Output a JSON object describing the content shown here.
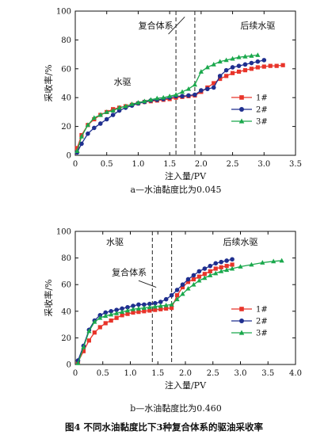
{
  "figure_caption": "图4   不同水油黏度比下3种复合体系的驱油采收率",
  "chart_data": [
    {
      "type": "line",
      "subcaption": "a—水油黏度比为0.045",
      "xlabel": "注入量/PV",
      "ylabel": "采收率/%",
      "xlim": [
        0,
        3.5
      ],
      "ylim": [
        0,
        100
      ],
      "xticks": [
        "0",
        "0.5",
        "1.0",
        "1.5",
        "2.0",
        "2.5",
        "3.0",
        "3.5"
      ],
      "yticks": [
        "0",
        "20",
        "40",
        "60",
        "80",
        "100"
      ],
      "grid": false,
      "legend_position": "right-middle",
      "annotations": [
        "复合体系",
        "水驱",
        "后续水驱"
      ],
      "phase_boundaries_pv": [
        1.6,
        1.9
      ],
      "series": [
        {
          "name": "1#",
          "color": "#e8342a",
          "marker": "square",
          "x": [
            0.03,
            0.1,
            0.2,
            0.3,
            0.4,
            0.5,
            0.6,
            0.7,
            0.8,
            0.9,
            1.0,
            1.1,
            1.2,
            1.3,
            1.4,
            1.5,
            1.6,
            1.7,
            1.8,
            1.9,
            2.0,
            2.1,
            2.2,
            2.3,
            2.4,
            2.5,
            2.6,
            2.7,
            2.8,
            2.9,
            3.0,
            3.1,
            3.2,
            3.3
          ],
          "y": [
            5,
            14,
            21,
            25,
            28,
            30,
            32,
            33,
            34,
            35,
            36,
            37,
            37.5,
            38,
            38.5,
            39,
            40,
            40.5,
            41,
            41.5,
            44,
            47,
            50,
            53,
            55,
            57,
            58,
            59,
            60,
            61,
            61.5,
            62,
            62,
            62.5
          ]
        },
        {
          "name": "2#",
          "color": "#1f2f8f",
          "marker": "circle",
          "x": [
            0.03,
            0.1,
            0.2,
            0.3,
            0.4,
            0.5,
            0.6,
            0.7,
            0.8,
            0.9,
            1.0,
            1.1,
            1.2,
            1.3,
            1.4,
            1.5,
            1.6,
            1.7,
            1.8,
            1.9,
            2.0,
            2.1,
            2.2,
            2.3,
            2.4,
            2.5,
            2.6,
            2.7,
            2.8,
            2.9,
            3.0
          ],
          "y": [
            2,
            8,
            15,
            19,
            22,
            25,
            28,
            31,
            33,
            34.5,
            36,
            37,
            38,
            38.5,
            39,
            40,
            41,
            41,
            41.5,
            42,
            45,
            46,
            47,
            55,
            59,
            61,
            62,
            63,
            64,
            65,
            66
          ]
        },
        {
          "name": "3#",
          "color": "#1aa84c",
          "marker": "triangle",
          "x": [
            0.03,
            0.1,
            0.2,
            0.3,
            0.4,
            0.5,
            0.6,
            0.7,
            0.8,
            0.9,
            1.0,
            1.1,
            1.2,
            1.3,
            1.4,
            1.5,
            1.6,
            1.7,
            1.8,
            1.9,
            2.0,
            2.1,
            2.2,
            2.3,
            2.4,
            2.5,
            2.6,
            2.7,
            2.8,
            2.9
          ],
          "y": [
            3,
            13,
            21,
            26,
            28,
            30,
            31,
            33,
            34,
            35.5,
            36.5,
            37.5,
            38.5,
            39.5,
            40,
            41,
            42,
            44,
            46,
            49,
            58,
            61,
            63,
            65,
            66,
            67,
            68,
            68.5,
            69,
            69.5
          ]
        }
      ]
    },
    {
      "type": "line",
      "subcaption": "b—水油黏度比为0.460",
      "xlabel": "注入量/PV",
      "ylabel": "采收率/%",
      "xlim": [
        0,
        4.0
      ],
      "ylim": [
        0,
        100
      ],
      "xticks": [
        "0",
        "0.5",
        "1.0",
        "1.5",
        "2.0",
        "2.5",
        "3.0",
        "3.5",
        "4.0"
      ],
      "yticks": [
        "0",
        "20",
        "40",
        "60",
        "80",
        "100"
      ],
      "grid": false,
      "legend_position": "right-middle",
      "annotations": [
        "水驱",
        "复合体系",
        "后续水驱"
      ],
      "phase_boundaries_pv": [
        1.4,
        1.75
      ],
      "series": [
        {
          "name": "1#",
          "color": "#e8342a",
          "marker": "square",
          "x": [
            0.05,
            0.15,
            0.25,
            0.35,
            0.45,
            0.55,
            0.65,
            0.75,
            0.85,
            0.95,
            1.05,
            1.15,
            1.25,
            1.35,
            1.45,
            1.55,
            1.65,
            1.75,
            1.85,
            1.95,
            2.05,
            2.15,
            2.25,
            2.35,
            2.45,
            2.55,
            2.65,
            2.75,
            2.85
          ],
          "y": [
            2,
            10,
            18,
            24,
            28,
            31,
            33,
            35,
            37,
            38,
            39,
            39.5,
            40,
            40.5,
            41,
            41.5,
            42,
            42.5,
            52,
            58,
            62,
            64,
            66,
            68,
            70,
            72,
            73,
            74,
            75
          ]
        },
        {
          "name": "2#",
          "color": "#1f2f8f",
          "marker": "circle",
          "x": [
            0.05,
            0.15,
            0.25,
            0.35,
            0.45,
            0.55,
            0.65,
            0.75,
            0.85,
            0.95,
            1.05,
            1.15,
            1.25,
            1.35,
            1.45,
            1.55,
            1.65,
            1.75,
            1.85,
            1.95,
            2.05,
            2.15,
            2.25,
            2.35,
            2.45,
            2.55,
            2.65,
            2.75,
            2.85
          ],
          "y": [
            3,
            14,
            26,
            33,
            37,
            39,
            40,
            41,
            42,
            43,
            44,
            45,
            45,
            45.5,
            46,
            47,
            49,
            52,
            56,
            60,
            64,
            67,
            70,
            72,
            74,
            76,
            77,
            78,
            79
          ]
        },
        {
          "name": "3#",
          "color": "#1aa84c",
          "marker": "triangle",
          "x": [
            0.05,
            0.15,
            0.25,
            0.35,
            0.45,
            0.55,
            0.65,
            0.75,
            0.85,
            0.95,
            1.05,
            1.15,
            1.25,
            1.35,
            1.45,
            1.55,
            1.65,
            1.75,
            1.85,
            1.95,
            2.05,
            2.15,
            2.25,
            2.35,
            2.45,
            2.55,
            2.65,
            2.75,
            2.85,
            3.0,
            3.2,
            3.4,
            3.6,
            3.75
          ],
          "y": [
            1,
            13,
            25,
            32,
            35,
            36.5,
            37.5,
            38.5,
            39.5,
            40.5,
            41.5,
            42,
            42.5,
            43,
            43.5,
            44,
            44.5,
            45,
            49,
            53,
            57,
            60,
            63,
            65,
            67,
            68.5,
            70,
            71,
            72,
            73.5,
            75,
            76.5,
            77.5,
            78
          ]
        }
      ]
    }
  ]
}
